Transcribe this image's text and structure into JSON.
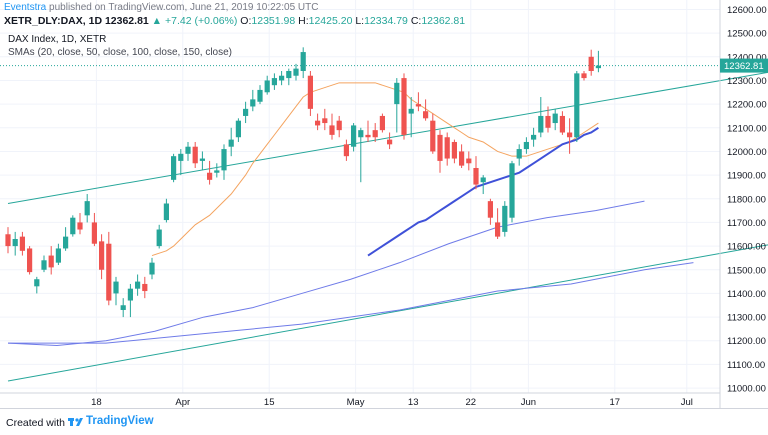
{
  "header": {
    "author": "Eventstra",
    "published_text": "published on TradingView.com, June 21, 2019 10:22:05 UTC",
    "symbol": "XETR_DLY:DAX, 1D",
    "last_price": "12362.81",
    "change": "▲ +7.42 (+0.06%)",
    "o_label": "O:",
    "o_value": "12351.98",
    "h_label": "H:",
    "h_value": "12425.20",
    "l_label": "L:",
    "l_value": "12334.79",
    "c_label": "C:",
    "c_value": "12362.81"
  },
  "legend": {
    "title": "DAX Index, 1D, XETR",
    "sma": "SMAs (20, close, 50, close, 100, close, 150, close)"
  },
  "footer": {
    "created_with": "Created with",
    "brand": "TradingView"
  },
  "colors": {
    "up": "#26a69a",
    "down": "#ef5350",
    "sma20": "#f4a460",
    "sma50": "#3f51d8",
    "sma100": "#6f7be8",
    "sma150": "#6f7be8",
    "channel": "#26a69a",
    "price_line": "#26a69a"
  },
  "chart_data": {
    "type": "candlestick",
    "x_tick_labels": [
      "18",
      "Apr",
      "15",
      "May",
      "13",
      "22",
      "Jun",
      "17",
      "Jul"
    ],
    "y_tick_labels": [
      "11000.00",
      "11100.00",
      "11200.00",
      "11300.00",
      "11400.00",
      "11500.00",
      "11600.00",
      "11700.00",
      "11800.00",
      "11900.00",
      "12000.00",
      "12100.00",
      "12200.00",
      "12300.00",
      "12400.00",
      "12500.00",
      "12600.00"
    ],
    "ylim": [
      10920,
      12640
    ],
    "last_price_label": "12362.81",
    "last_price": 12362.81,
    "candles": [
      {
        "o": 11650,
        "h": 11680,
        "l": 11570,
        "c": 11600
      },
      {
        "o": 11600,
        "h": 11660,
        "l": 11560,
        "c": 11630
      },
      {
        "o": 11640,
        "h": 11660,
        "l": 11560,
        "c": 11580
      },
      {
        "o": 11590,
        "h": 11600,
        "l": 11480,
        "c": 11490
      },
      {
        "o": 11430,
        "h": 11470,
        "l": 11400,
        "c": 11460
      },
      {
        "o": 11500,
        "h": 11560,
        "l": 11490,
        "c": 11540
      },
      {
        "o": 11560,
        "h": 11600,
        "l": 11480,
        "c": 11510
      },
      {
        "o": 11530,
        "h": 11610,
        "l": 11520,
        "c": 11590
      },
      {
        "o": 11590,
        "h": 11680,
        "l": 11580,
        "c": 11640
      },
      {
        "o": 11650,
        "h": 11730,
        "l": 11640,
        "c": 11720
      },
      {
        "o": 11700,
        "h": 11740,
        "l": 11650,
        "c": 11670
      },
      {
        "o": 11730,
        "h": 11820,
        "l": 11700,
        "c": 11790
      },
      {
        "o": 11700,
        "h": 11740,
        "l": 11600,
        "c": 11610
      },
      {
        "o": 11620,
        "h": 11650,
        "l": 11460,
        "c": 11500
      },
      {
        "o": 11610,
        "h": 11660,
        "l": 11350,
        "c": 11370
      },
      {
        "o": 11400,
        "h": 11470,
        "l": 11350,
        "c": 11450
      },
      {
        "o": 11330,
        "h": 11380,
        "l": 11300,
        "c": 11350
      },
      {
        "o": 11370,
        "h": 11440,
        "l": 11300,
        "c": 11420
      },
      {
        "o": 11420,
        "h": 11480,
        "l": 11390,
        "c": 11450
      },
      {
        "o": 11440,
        "h": 11470,
        "l": 11380,
        "c": 11410
      },
      {
        "o": 11480,
        "h": 11550,
        "l": 11460,
        "c": 11530
      },
      {
        "o": 11600,
        "h": 11690,
        "l": 11590,
        "c": 11670
      },
      {
        "o": 11710,
        "h": 11800,
        "l": 11700,
        "c": 11780
      },
      {
        "o": 11880,
        "h": 11990,
        "l": 11870,
        "c": 11980
      },
      {
        "o": 11960,
        "h": 12010,
        "l": 11900,
        "c": 11990
      },
      {
        "o": 11990,
        "h": 12040,
        "l": 11960,
        "c": 12020
      },
      {
        "o": 12020,
        "h": 12040,
        "l": 11930,
        "c": 11950
      },
      {
        "o": 11960,
        "h": 12000,
        "l": 11920,
        "c": 11970
      },
      {
        "o": 11910,
        "h": 11960,
        "l": 11860,
        "c": 11880
      },
      {
        "o": 11910,
        "h": 11950,
        "l": 11890,
        "c": 11920
      },
      {
        "o": 11920,
        "h": 12030,
        "l": 11880,
        "c": 12010
      },
      {
        "o": 12020,
        "h": 12100,
        "l": 11980,
        "c": 12050
      },
      {
        "o": 12060,
        "h": 12140,
        "l": 12040,
        "c": 12130
      },
      {
        "o": 12150,
        "h": 12210,
        "l": 12120,
        "c": 12180
      },
      {
        "o": 12190,
        "h": 12260,
        "l": 12170,
        "c": 12220
      },
      {
        "o": 12210,
        "h": 12280,
        "l": 12200,
        "c": 12260
      },
      {
        "o": 12250,
        "h": 12320,
        "l": 12240,
        "c": 12300
      },
      {
        "o": 12280,
        "h": 12330,
        "l": 12260,
        "c": 12310
      },
      {
        "o": 12300,
        "h": 12340,
        "l": 12280,
        "c": 12320
      },
      {
        "o": 12310,
        "h": 12350,
        "l": 12280,
        "c": 12340
      },
      {
        "o": 12320,
        "h": 12370,
        "l": 12300,
        "c": 12350
      },
      {
        "o": 12340,
        "h": 12440,
        "l": 12310,
        "c": 12420
      },
      {
        "o": 12320,
        "h": 12340,
        "l": 12150,
        "c": 12180
      },
      {
        "o": 12130,
        "h": 12160,
        "l": 12090,
        "c": 12110
      },
      {
        "o": 12140,
        "h": 12180,
        "l": 12090,
        "c": 12120
      },
      {
        "o": 12110,
        "h": 12160,
        "l": 12050,
        "c": 12070
      },
      {
        "o": 12130,
        "h": 12150,
        "l": 12060,
        "c": 12090
      },
      {
        "o": 12030,
        "h": 12050,
        "l": 11960,
        "c": 11980
      },
      {
        "o": 12020,
        "h": 12120,
        "l": 12000,
        "c": 12110
      },
      {
        "o": 12060,
        "h": 12100,
        "l": 11870,
        "c": 12090
      },
      {
        "o": 12070,
        "h": 12130,
        "l": 12040,
        "c": 12060
      },
      {
        "o": 12090,
        "h": 12120,
        "l": 12040,
        "c": 12060
      },
      {
        "o": 12150,
        "h": 12160,
        "l": 12080,
        "c": 12090
      },
      {
        "o": 12050,
        "h": 12080,
        "l": 12010,
        "c": 12030
      },
      {
        "o": 12200,
        "h": 12310,
        "l": 12080,
        "c": 12290
      },
      {
        "o": 12310,
        "h": 12330,
        "l": 12050,
        "c": 12070
      },
      {
        "o": 12160,
        "h": 12230,
        "l": 12060,
        "c": 12180
      },
      {
        "o": 12200,
        "h": 12250,
        "l": 12170,
        "c": 12190
      },
      {
        "o": 12170,
        "h": 12220,
        "l": 12130,
        "c": 12140
      },
      {
        "o": 12130,
        "h": 12160,
        "l": 11990,
        "c": 12000
      },
      {
        "o": 12070,
        "h": 12090,
        "l": 11910,
        "c": 11960
      },
      {
        "o": 12060,
        "h": 12080,
        "l": 11940,
        "c": 11970
      },
      {
        "o": 12040,
        "h": 12050,
        "l": 11950,
        "c": 11970
      },
      {
        "o": 12000,
        "h": 12030,
        "l": 11930,
        "c": 11940
      },
      {
        "o": 11970,
        "h": 12000,
        "l": 11920,
        "c": 11950
      },
      {
        "o": 11930,
        "h": 11980,
        "l": 11840,
        "c": 11860
      },
      {
        "o": 11870,
        "h": 11900,
        "l": 11820,
        "c": 11890
      },
      {
        "o": 11790,
        "h": 11800,
        "l": 11690,
        "c": 11720
      },
      {
        "o": 11700,
        "h": 11760,
        "l": 11630,
        "c": 11640
      },
      {
        "o": 11660,
        "h": 11790,
        "l": 11640,
        "c": 11770
      },
      {
        "o": 11720,
        "h": 11960,
        "l": 11700,
        "c": 11950
      },
      {
        "o": 11970,
        "h": 12030,
        "l": 11940,
        "c": 12010
      },
      {
        "o": 12010,
        "h": 12060,
        "l": 11990,
        "c": 12040
      },
      {
        "o": 12050,
        "h": 12100,
        "l": 12020,
        "c": 12070
      },
      {
        "o": 12080,
        "h": 12230,
        "l": 12060,
        "c": 12150
      },
      {
        "o": 12150,
        "h": 12190,
        "l": 12080,
        "c": 12100
      },
      {
        "o": 12120,
        "h": 12180,
        "l": 12090,
        "c": 12160
      },
      {
        "o": 12150,
        "h": 12170,
        "l": 12070,
        "c": 12080
      },
      {
        "o": 12080,
        "h": 12140,
        "l": 11990,
        "c": 12060
      },
      {
        "o": 12060,
        "h": 12340,
        "l": 12040,
        "c": 12330
      },
      {
        "o": 12330,
        "h": 12340,
        "l": 12300,
        "c": 12310
      },
      {
        "o": 12400,
        "h": 12430,
        "l": 12320,
        "c": 12340
      },
      {
        "o": 12351.98,
        "h": 12425.2,
        "l": 12334.79,
        "c": 12362.81
      }
    ],
    "sma20": [
      null,
      null,
      null,
      null,
      null,
      null,
      null,
      null,
      null,
      null,
      null,
      null,
      null,
      null,
      null,
      null,
      null,
      null,
      null,
      null,
      11560,
      11570,
      11580,
      11600,
      11630,
      11660,
      11690,
      11710,
      11730,
      11760,
      11790,
      11820,
      11860,
      11900,
      11950,
      11990,
      12030,
      12070,
      12110,
      12150,
      12190,
      12230,
      12250,
      12260,
      12270,
      12280,
      12290,
      12290,
      12290,
      12290,
      12290,
      12290,
      12280,
      12270,
      12260,
      12250,
      12220,
      12200,
      12180,
      12160,
      12140,
      12120,
      12100,
      12080,
      12060,
      12050,
      12040,
      12020,
      12000,
      11990,
      11980,
      11980,
      11980,
      11990,
      12000,
      12010,
      12020,
      12030,
      12040,
      12060,
      12080,
      12100,
      12120
    ],
    "sma50": [
      null,
      null,
      null,
      null,
      null,
      null,
      null,
      null,
      null,
      null,
      null,
      null,
      null,
      null,
      null,
      null,
      null,
      null,
      null,
      null,
      null,
      null,
      null,
      null,
      null,
      null,
      null,
      null,
      null,
      null,
      null,
      null,
      null,
      null,
      null,
      null,
      null,
      null,
      null,
      null,
      null,
      null,
      null,
      null,
      null,
      null,
      null,
      null,
      null,
      null,
      11560,
      11580,
      11600,
      11620,
      11640,
      11660,
      11680,
      11700,
      11710,
      11730,
      11750,
      11770,
      11790,
      11810,
      11830,
      11850,
      11860,
      11870,
      11880,
      11890,
      11900,
      11910,
      11930,
      11950,
      11970,
      11990,
      12010,
      12030,
      12040,
      12050,
      12070,
      12080,
      12100
    ],
    "sma100_line": [
      [
        0,
        11190
      ],
      [
        20,
        11180
      ],
      [
        40,
        11200
      ],
      [
        60,
        11240
      ],
      [
        80,
        11300
      ],
      [
        100,
        11340
      ],
      [
        120,
        11400
      ],
      [
        140,
        11460
      ],
      [
        160,
        11530
      ],
      [
        180,
        11610
      ],
      [
        200,
        11680
      ],
      [
        220,
        11720
      ],
      [
        240,
        11750
      ],
      [
        260,
        11790
      ]
    ],
    "sma150_line": [
      [
        0,
        11190
      ],
      [
        40,
        11190
      ],
      [
        80,
        11230
      ],
      [
        120,
        11270
      ],
      [
        160,
        11330
      ],
      [
        200,
        11410
      ],
      [
        230,
        11440
      ],
      [
        260,
        11500
      ],
      [
        280,
        11530
      ]
    ],
    "channel_upper": [
      [
        0,
        11780
      ],
      [
        160,
        12620
      ]
    ],
    "channel_lower": [
      [
        0,
        11030
      ],
      [
        200,
        12120
      ]
    ]
  }
}
